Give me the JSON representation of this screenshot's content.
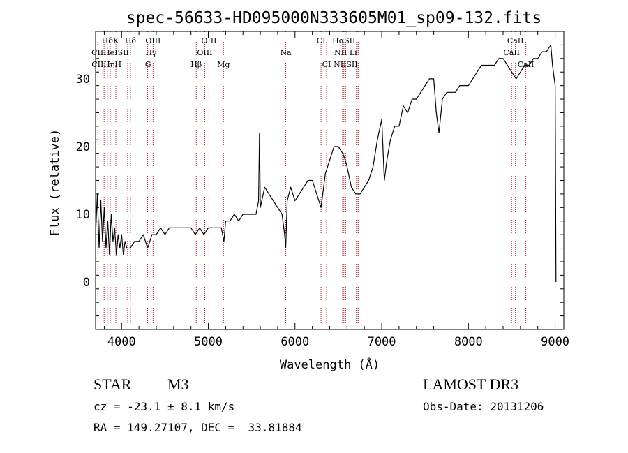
{
  "chart_data": {
    "type": "line",
    "title": "spec-56633-HD095000N333605M01_sp09-132.fits",
    "xlabel": "Wavelength (Å)",
    "ylabel": "Flux (relative)",
    "xlim": [
      3700,
      9100
    ],
    "ylim": [
      -7,
      37
    ],
    "x_ticks": [
      4000,
      5000,
      6000,
      7000,
      8000,
      9000
    ],
    "y_ticks": [
      0,
      10,
      20,
      30
    ],
    "grid": false,
    "series": [
      {
        "color": "#000000",
        "x": [
          3700,
          3720,
          3740,
          3760,
          3780,
          3800,
          3820,
          3840,
          3860,
          3880,
          3900,
          3920,
          3940,
          3960,
          3980,
          4000,
          4020,
          4040,
          4060,
          4080,
          4100,
          4150,
          4200,
          4250,
          4300,
          4350,
          4400,
          4450,
          4500,
          4550,
          4600,
          4650,
          4700,
          4750,
          4800,
          4850,
          4900,
          4950,
          5000,
          5050,
          5100,
          5150,
          5180,
          5200,
          5250,
          5300,
          5350,
          5400,
          5450,
          5500,
          5550,
          5580,
          5590,
          5600,
          5650,
          5700,
          5750,
          5800,
          5850,
          5880,
          5893,
          5910,
          5950,
          6000,
          6050,
          6100,
          6150,
          6200,
          6250,
          6300,
          6350,
          6400,
          6450,
          6500,
          6550,
          6580,
          6600,
          6650,
          6700,
          6750,
          6800,
          6850,
          6900,
          6950,
          7000,
          7030,
          7060,
          7100,
          7150,
          7200,
          7250,
          7300,
          7350,
          7400,
          7450,
          7500,
          7550,
          7600,
          7630,
          7660,
          7700,
          7750,
          7800,
          7850,
          7900,
          7950,
          8000,
          8050,
          8100,
          8150,
          8200,
          8250,
          8300,
          8350,
          8400,
          8450,
          8500,
          8550,
          8600,
          8650,
          8700,
          8750,
          8800,
          8850,
          8900,
          8950,
          8970,
          9000,
          9010
        ],
        "y": [
          7,
          13,
          5,
          12,
          6,
          11,
          5,
          9,
          4,
          10,
          6,
          8,
          4,
          7,
          5,
          7,
          4,
          6,
          5,
          5,
          5,
          6,
          6,
          7,
          5,
          7,
          7,
          8,
          7,
          8,
          8,
          8,
          8,
          8,
          8,
          7,
          8,
          7,
          8,
          8,
          8,
          8,
          6,
          9,
          9,
          10,
          9,
          10,
          10,
          10,
          10,
          12,
          22,
          11,
          14,
          13,
          12,
          11,
          10,
          7,
          5,
          12,
          14,
          12,
          13,
          14,
          15,
          15,
          13,
          11,
          16,
          18,
          20,
          20,
          19,
          18,
          17,
          14,
          13,
          13,
          14,
          15,
          17,
          21,
          24,
          15,
          18,
          21,
          23,
          23,
          26,
          25,
          27,
          27,
          28,
          29,
          30,
          30,
          25,
          22,
          27,
          28,
          28,
          28,
          29,
          29,
          29,
          30,
          31,
          32,
          32,
          32,
          32,
          33,
          33,
          32,
          31,
          30,
          31,
          32,
          32,
          33,
          33,
          34,
          34,
          35,
          32,
          29,
          0
        ]
      }
    ],
    "line_labels": [
      {
        "text": "Hδ",
        "x": 3835,
        "row": 1
      },
      {
        "text": "K",
        "x": 3934,
        "row": 1
      },
      {
        "text": "Hδ",
        "x": 4102,
        "row": 1
      },
      {
        "text": "OIII",
        "x": 4363,
        "row": 1
      },
      {
        "text": "OIII",
        "x": 5007,
        "row": 1
      },
      {
        "text": "CI",
        "x": 6300,
        "row": 1
      },
      {
        "text": "HαSII",
        "x": 6563,
        "row": 1
      },
      {
        "text": "CaII",
        "x": 8542,
        "row": 1
      },
      {
        "text": "CIIHeISII",
        "x": 3869,
        "row": 2
      },
      {
        "text": "Hγ",
        "x": 4340,
        "row": 2
      },
      {
        "text": "OIII",
        "x": 4959,
        "row": 2
      },
      {
        "text": "Na",
        "x": 5893,
        "row": 2
      },
      {
        "text": "NII Li",
        "x": 6584,
        "row": 2
      },
      {
        "text": "CaII",
        "x": 8498,
        "row": 2
      },
      {
        "text": "CIIHηH",
        "x": 3826,
        "row": 3
      },
      {
        "text": "G",
        "x": 4305,
        "row": 3
      },
      {
        "text": "Hβ",
        "x": 4861,
        "row": 3
      },
      {
        "text": "Mg",
        "x": 5175,
        "row": 3
      },
      {
        "text": "CI",
        "x": 6364,
        "row": 3
      },
      {
        "text": "NIISII",
        "x": 6584,
        "row": 3
      },
      {
        "text": "CaII",
        "x": 8662,
        "row": 3
      }
    ],
    "line_marks": [
      3727,
      3798,
      3835,
      3869,
      3889,
      3934,
      3970,
      4070,
      4102,
      4300,
      4340,
      4363,
      4861,
      4959,
      5007,
      5175,
      5893,
      6300,
      6364,
      6548,
      6563,
      6584,
      6708,
      6717,
      6731,
      8498,
      8542,
      8662
    ]
  },
  "info": {
    "object_class": "STAR",
    "subclass": "M3",
    "survey": "LAMOST DR3",
    "redshift_line": "cz = -23.1 ± 8.1 km/s",
    "obs_date": "Obs-Date: 20131206",
    "coords": "RA = 149.27107, DEC =  33.81884"
  }
}
